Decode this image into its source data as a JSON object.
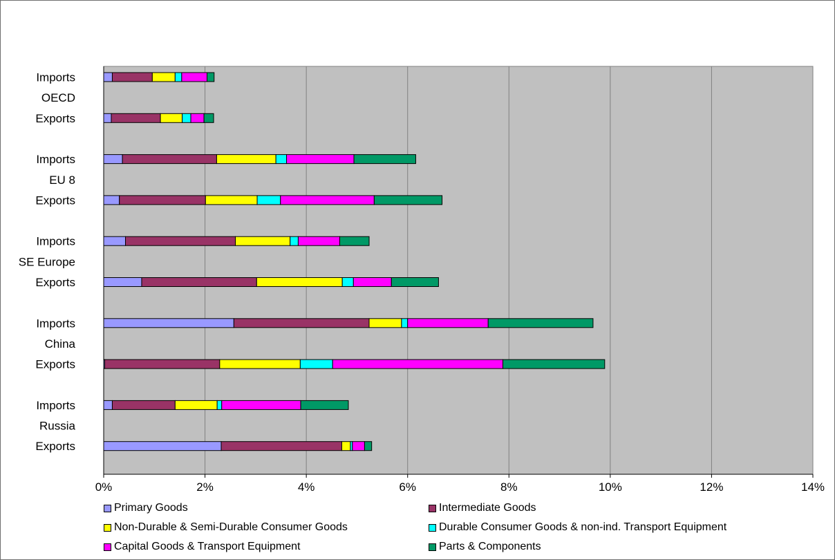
{
  "chart_data": {
    "type": "bar",
    "orientation": "horizontal",
    "stacked": true,
    "title": "",
    "xlabel": "",
    "ylabel": "",
    "xlim": [
      0,
      14
    ],
    "x_ticks": [
      "0%",
      "2%",
      "4%",
      "6%",
      "8%",
      "10%",
      "12%",
      "14%"
    ],
    "grid": "vertical",
    "legend_position": "bottom",
    "groups": [
      "OECD",
      "EU 8",
      "SE Europe",
      "China",
      "Russia"
    ],
    "rows": [
      {
        "group": "OECD",
        "label": "Imports"
      },
      {
        "group": "OECD",
        "label": "Exports"
      },
      {
        "group": "EU 8",
        "label": "Imports"
      },
      {
        "group": "EU 8",
        "label": "Exports"
      },
      {
        "group": "SE Europe",
        "label": "Imports"
      },
      {
        "group": "SE Europe",
        "label": "Exports"
      },
      {
        "group": "China",
        "label": "Imports"
      },
      {
        "group": "China",
        "label": "Exports"
      },
      {
        "group": "Russia",
        "label": "Imports"
      },
      {
        "group": "Russia",
        "label": "Exports"
      }
    ],
    "series": [
      {
        "name": "Primary Goods",
        "color": "#9999ff",
        "values": [
          0.17,
          0.15,
          0.37,
          0.31,
          0.43,
          0.75,
          2.57,
          0.02,
          0.17,
          2.32
        ]
      },
      {
        "name": "Intermediate Goods",
        "color": "#993366",
        "values": [
          0.79,
          0.97,
          1.86,
          1.7,
          2.17,
          2.27,
          2.67,
          2.27,
          1.24,
          2.38
        ]
      },
      {
        "name": "Non-Durable & Semi-Durable Consumer Goods",
        "color": "#ffff00",
        "values": [
          0.45,
          0.43,
          1.17,
          1.02,
          1.08,
          1.69,
          0.64,
          1.59,
          0.83,
          0.17
        ]
      },
      {
        "name": "Durable Consumer Goods & non-ind. Transport Equipment",
        "color": "#00ffff",
        "values": [
          0.13,
          0.17,
          0.21,
          0.46,
          0.16,
          0.22,
          0.12,
          0.64,
          0.09,
          0.04
        ]
      },
      {
        "name": "Capital Goods & Transport Equipment",
        "color": "#ff00ff",
        "values": [
          0.5,
          0.26,
          1.33,
          1.85,
          0.82,
          0.75,
          1.59,
          3.36,
          1.56,
          0.24
        ]
      },
      {
        "name": "Parts & Components",
        "color": "#009966",
        "values": [
          0.14,
          0.19,
          1.22,
          1.34,
          0.58,
          0.93,
          2.07,
          2.01,
          0.94,
          0.14
        ]
      }
    ]
  },
  "colors": {
    "plot_background": "#c0c0c0",
    "grid": "#808080",
    "bar_outline": "#000000"
  }
}
